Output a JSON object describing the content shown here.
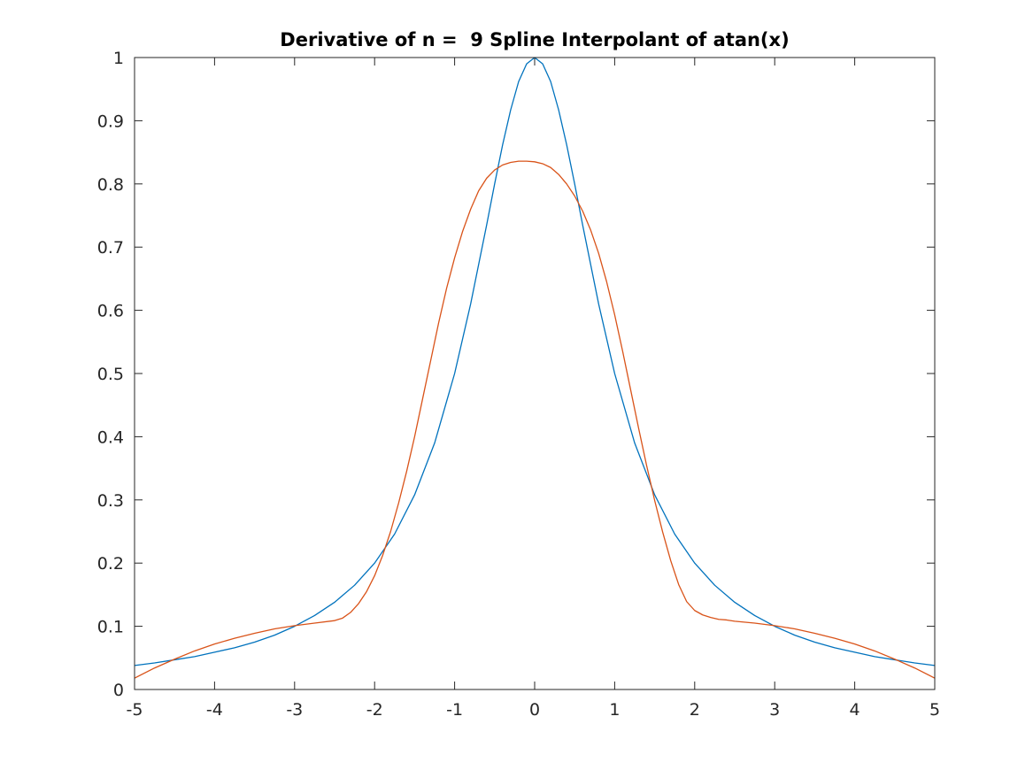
{
  "chart_data": {
    "type": "line",
    "title": "Derivative of n =  9 Spline Interpolant of atan(x)",
    "xlabel": "",
    "ylabel": "",
    "xlim": [
      -5,
      5
    ],
    "ylim": [
      0,
      1
    ],
    "grid": false,
    "legend": "none",
    "xticks": [
      -5,
      -4,
      -3,
      -2,
      -1,
      0,
      1,
      2,
      3,
      4,
      5
    ],
    "xtick_labels": [
      "-5",
      "-4",
      "-3",
      "-2",
      "-1",
      "0",
      "1",
      "2",
      "3",
      "4",
      "5"
    ],
    "yticks": [
      0,
      0.1,
      0.2,
      0.3,
      0.4,
      0.5,
      0.6,
      0.7,
      0.8,
      0.9,
      1
    ],
    "ytick_labels": [
      "0",
      "0.1",
      "0.2",
      "0.3",
      "0.4",
      "0.5",
      "0.6",
      "0.7",
      "0.8",
      "0.9",
      "1"
    ],
    "series": [
      {
        "color": "#0072bd",
        "x": [
          -5,
          -4.75,
          -4.5,
          -4.25,
          -4,
          -3.75,
          -3.5,
          -3.25,
          -3,
          -2.75,
          -2.5,
          -2.25,
          -2,
          -1.75,
          -1.5,
          -1.25,
          -1,
          -0.8,
          -0.6,
          -0.5,
          -0.4,
          -0.3,
          -0.2,
          -0.1,
          0,
          0.1,
          0.2,
          0.3,
          0.4,
          0.5,
          0.6,
          0.8,
          1,
          1.25,
          1.5,
          1.75,
          2,
          2.25,
          2.5,
          2.75,
          3,
          3.25,
          3.5,
          3.75,
          4,
          4.25,
          4.5,
          4.75,
          5
        ],
        "y": [
          0.038,
          0.042,
          0.047,
          0.052,
          0.059,
          0.066,
          0.075,
          0.086,
          0.1,
          0.117,
          0.138,
          0.165,
          0.2,
          0.246,
          0.308,
          0.39,
          0.5,
          0.61,
          0.735,
          0.8,
          0.862,
          0.917,
          0.962,
          0.99,
          1,
          0.99,
          0.962,
          0.917,
          0.862,
          0.8,
          0.735,
          0.61,
          0.5,
          0.39,
          0.308,
          0.246,
          0.2,
          0.165,
          0.138,
          0.117,
          0.1,
          0.086,
          0.075,
          0.066,
          0.059,
          0.052,
          0.047,
          0.042,
          0.038
        ]
      },
      {
        "color": "#d95319",
        "x": [
          -5,
          -4.75,
          -4.5,
          -4.25,
          -4,
          -3.75,
          -3.5,
          -3.25,
          -3,
          -2.75,
          -2.5,
          -2.4,
          -2.3,
          -2.2,
          -2.1,
          -2,
          -1.9,
          -1.8,
          -1.7,
          -1.6,
          -1.5,
          -1.4,
          -1.3,
          -1.2,
          -1.1,
          -1,
          -0.9,
          -0.8,
          -0.7,
          -0.6,
          -0.5,
          -0.4,
          -0.3,
          -0.2,
          -0.1,
          0,
          0.1,
          0.2,
          0.3,
          0.4,
          0.5,
          0.6,
          0.7,
          0.8,
          0.9,
          1,
          1.1,
          1.2,
          1.3,
          1.4,
          1.5,
          1.6,
          1.7,
          1.8,
          1.9,
          2,
          2.1,
          2.2,
          2.3,
          2.4,
          2.5,
          2.75,
          3,
          3.25,
          3.5,
          3.75,
          4,
          4.25,
          4.5,
          4.75,
          5
        ],
        "y": [
          0.018,
          0.034,
          0.048,
          0.061,
          0.072,
          0.081,
          0.089,
          0.096,
          0.101,
          0.105,
          0.109,
          0.113,
          0.122,
          0.136,
          0.155,
          0.18,
          0.212,
          0.25,
          0.295,
          0.345,
          0.4,
          0.46,
          0.52,
          0.58,
          0.635,
          0.683,
          0.725,
          0.76,
          0.789,
          0.809,
          0.822,
          0.83,
          0.834,
          0.836,
          0.836,
          0.835,
          0.832,
          0.826,
          0.815,
          0.8,
          0.781,
          0.757,
          0.727,
          0.69,
          0.645,
          0.593,
          0.535,
          0.474,
          0.413,
          0.354,
          0.299,
          0.249,
          0.204,
          0.166,
          0.139,
          0.125,
          0.118,
          0.114,
          0.111,
          0.11,
          0.108,
          0.105,
          0.101,
          0.096,
          0.089,
          0.081,
          0.072,
          0.061,
          0.048,
          0.034,
          0.018
        ]
      }
    ]
  }
}
